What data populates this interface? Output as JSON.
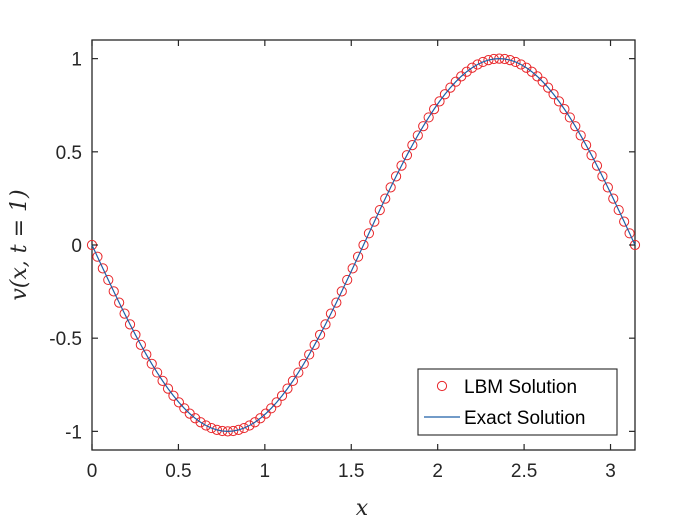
{
  "chart_data": {
    "type": "line",
    "title": "",
    "xlabel": "x",
    "ylabel": "v(x, t = 1)",
    "xlim": [
      0,
      3.1416
    ],
    "ylim": [
      -1.1,
      1.1
    ],
    "x_ticks": [
      0,
      0.5,
      1,
      1.5,
      2,
      2.5,
      3
    ],
    "x_tick_labels": [
      "0",
      "0.5",
      "1",
      "1.5",
      "2",
      "2.5",
      "3"
    ],
    "y_ticks": [
      1,
      0.5,
      0,
      -0.5,
      -1
    ],
    "y_tick_labels": [
      "1",
      "0.5",
      "0",
      "-0.5",
      "-1"
    ],
    "grid": false,
    "legend_position": "bottom-right",
    "x": [
      0,
      0.0314,
      0.0628,
      0.0942,
      0.1257,
      0.1571,
      0.1885,
      0.2199,
      0.2513,
      0.2827,
      0.3142,
      0.3456,
      0.377,
      0.4084,
      0.4398,
      0.4712,
      0.5027,
      0.5341,
      0.5655,
      0.5969,
      0.6283,
      0.6597,
      0.6912,
      0.7226,
      0.754,
      0.7854,
      0.8168,
      0.8482,
      0.8796,
      0.9111,
      0.9425,
      0.9739,
      1.0053,
      1.0367,
      1.0681,
      1.0996,
      1.131,
      1.1624,
      1.1938,
      1.2252,
      1.2566,
      1.2881,
      1.3195,
      1.3509,
      1.3823,
      1.4137,
      1.4451,
      1.4765,
      1.508,
      1.5394,
      1.5708,
      1.6022,
      1.6336,
      1.665,
      1.6965,
      1.7279,
      1.7593,
      1.7907,
      1.8221,
      1.8535,
      1.885,
      1.9164,
      1.9478,
      1.9792,
      2.0106,
      2.042,
      2.0735,
      2.1049,
      2.1363,
      2.1677,
      2.1991,
      2.2305,
      2.2619,
      2.2934,
      2.3248,
      2.3562,
      2.3876,
      2.419,
      2.4504,
      2.4819,
      2.5133,
      2.5447,
      2.5761,
      2.6075,
      2.6389,
      2.6704,
      2.7018,
      2.7332,
      2.7646,
      2.796,
      2.8274,
      2.8588,
      2.8903,
      2.9217,
      2.9531,
      2.9845,
      3.0159,
      3.0473,
      3.0788,
      3.1102,
      3.1416
    ],
    "series": [
      {
        "name": "LBM Solution",
        "style": "markers",
        "marker": "circle",
        "color": "#e8262a",
        "values": [
          0,
          -0.0628,
          -0.1253,
          -0.1874,
          -0.2487,
          -0.309,
          -0.3681,
          -0.4258,
          -0.4818,
          -0.5358,
          -0.5878,
          -0.6374,
          -0.6845,
          -0.729,
          -0.7705,
          -0.809,
          -0.8443,
          -0.8763,
          -0.9048,
          -0.9298,
          -0.9511,
          -0.9686,
          -0.9823,
          -0.9921,
          -0.998,
          -1,
          -0.998,
          -0.9921,
          -0.9823,
          -0.9686,
          -0.9511,
          -0.9298,
          -0.9048,
          -0.8763,
          -0.8443,
          -0.809,
          -0.7705,
          -0.729,
          -0.6845,
          -0.6374,
          -0.5878,
          -0.5358,
          -0.4818,
          -0.4258,
          -0.3681,
          -0.309,
          -0.2487,
          -0.1874,
          -0.1253,
          -0.0628,
          0,
          0.0628,
          0.1253,
          0.1874,
          0.2487,
          0.309,
          0.3681,
          0.4258,
          0.4818,
          0.5358,
          0.5878,
          0.6374,
          0.6845,
          0.729,
          0.7705,
          0.809,
          0.8443,
          0.8763,
          0.9048,
          0.9298,
          0.9511,
          0.9686,
          0.9823,
          0.9921,
          0.998,
          1,
          0.998,
          0.9921,
          0.9823,
          0.9686,
          0.9511,
          0.9298,
          0.9048,
          0.8763,
          0.8443,
          0.809,
          0.7705,
          0.729,
          0.6845,
          0.6374,
          0.5878,
          0.5358,
          0.4818,
          0.4258,
          0.3681,
          0.309,
          0.2487,
          0.1874,
          0.1253,
          0.0628,
          0
        ]
      },
      {
        "name": "Exact Solution",
        "style": "line",
        "color": "#1f5fa8",
        "values": [
          0,
          -0.0628,
          -0.1253,
          -0.1874,
          -0.2487,
          -0.309,
          -0.3681,
          -0.4258,
          -0.4818,
          -0.5358,
          -0.5878,
          -0.6374,
          -0.6845,
          -0.729,
          -0.7705,
          -0.809,
          -0.8443,
          -0.8763,
          -0.9048,
          -0.9298,
          -0.9511,
          -0.9686,
          -0.9823,
          -0.9921,
          -0.998,
          -1,
          -0.998,
          -0.9921,
          -0.9823,
          -0.9686,
          -0.9511,
          -0.9298,
          -0.9048,
          -0.8763,
          -0.8443,
          -0.809,
          -0.7705,
          -0.729,
          -0.6845,
          -0.6374,
          -0.5878,
          -0.5358,
          -0.4818,
          -0.4258,
          -0.3681,
          -0.309,
          -0.2487,
          -0.1874,
          -0.1253,
          -0.0628,
          0,
          0.0628,
          0.1253,
          0.1874,
          0.2487,
          0.309,
          0.3681,
          0.4258,
          0.4818,
          0.5358,
          0.5878,
          0.6374,
          0.6845,
          0.729,
          0.7705,
          0.809,
          0.8443,
          0.8763,
          0.9048,
          0.9298,
          0.9511,
          0.9686,
          0.9823,
          0.9921,
          0.998,
          1,
          0.998,
          0.9921,
          0.9823,
          0.9686,
          0.9511,
          0.9298,
          0.9048,
          0.8763,
          0.8443,
          0.809,
          0.7705,
          0.729,
          0.6845,
          0.6374,
          0.5878,
          0.5358,
          0.4818,
          0.4258,
          0.3681,
          0.309,
          0.2487,
          0.1874,
          0.1253,
          0.0628,
          0
        ]
      }
    ],
    "axis_color": "#262626"
  }
}
